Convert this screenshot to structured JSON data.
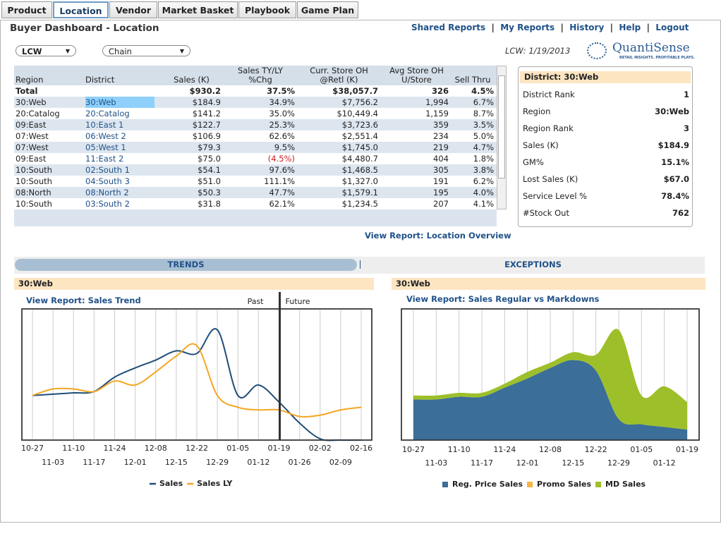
{
  "tabs": [
    "Product",
    "Location",
    "Vendor",
    "Market Basket",
    "Playbook",
    "Game Plan"
  ],
  "header": {
    "title": "Buyer Dashboard - Location",
    "links": [
      "Shared Reports",
      "My Reports",
      "History",
      "Help",
      "Logout"
    ]
  },
  "filters": [
    "LCW",
    "Chain"
  ],
  "date_label": "LCW: 1/19/2013",
  "logo": {
    "name": "QuantiSense",
    "tagline": "RETAIL INSIGHTS. PROFITABLE PLAYS."
  },
  "table": {
    "headers": [
      [
        "Region"
      ],
      [
        "District"
      ],
      [
        "Sales (K)"
      ],
      [
        "Sales TY/LY",
        "%Chg"
      ],
      [
        "Curr. Store OH",
        "@Retl (K)"
      ],
      [
        "Avg Store OH",
        "U/Store"
      ],
      [
        "Sell Thru"
      ]
    ],
    "total": {
      "label": "Total",
      "cells": [
        "$930.2",
        "37.5%",
        "$38,057.7",
        "326",
        "4.5%"
      ]
    },
    "rows": [
      [
        "30:Web",
        "30:Web",
        "$184.9",
        "34.9%",
        "$7,756.2",
        "1,994",
        "6.7%"
      ],
      [
        "20:Catalog",
        "20:Catalog",
        "$141.2",
        "35.0%",
        "$10,449.4",
        "1,159",
        "8.7%"
      ],
      [
        "09:East",
        "10:East 1",
        "$122.7",
        "25.3%",
        "$3,723.6",
        "359",
        "3.5%"
      ],
      [
        "07:West",
        "06:West 2",
        "$106.9",
        "62.6%",
        "$2,551.4",
        "234",
        "5.0%"
      ],
      [
        "07:West",
        "05:West 1",
        "$79.3",
        "9.5%",
        "$1,745.0",
        "219",
        "4.7%"
      ],
      [
        "09:East",
        "11:East 2",
        "$75.0",
        "(4.5%)",
        "$4,480.7",
        "404",
        "1.8%"
      ],
      [
        "10:South",
        "02:South 1",
        "$54.1",
        "97.6%",
        "$1,468.5",
        "305",
        "3.8%"
      ],
      [
        "10:South",
        "04:South 3",
        "$51.0",
        "111.1%",
        "$1,327.0",
        "191",
        "6.2%"
      ],
      [
        "08:North",
        "08:North 2",
        "$50.3",
        "47.7%",
        "$1,579.1",
        "195",
        "4.0%"
      ],
      [
        "10:South",
        "03:South 2",
        "$31.8",
        "62.1%",
        "$1,234.5",
        "207",
        "4.1%"
      ]
    ],
    "link": "View Report: Location Overview"
  },
  "district": {
    "title": "District: 30:Web",
    "rows": [
      [
        "District Rank",
        "1"
      ],
      [
        "Region",
        "30:Web"
      ],
      [
        "Region Rank",
        "3"
      ],
      [
        "Sales (K)",
        "$184.9"
      ],
      [
        "GM%",
        "15.1%"
      ],
      [
        "Lost Sales (K)",
        "$67.0"
      ],
      [
        "Service Level %",
        "78.4%"
      ],
      [
        "#Stock Out",
        "762"
      ]
    ]
  },
  "section_tabs": [
    "TRENDS",
    "EXCEPTIONS"
  ],
  "chart_data": [
    {
      "type": "line",
      "panel_title": "30:Web",
      "link": "View Report: Sales Trend",
      "categories": [
        "10-27",
        "11-03",
        "11-10",
        "11-17",
        "11-24",
        "12-01",
        "12-08",
        "12-15",
        "12-22",
        "12-29",
        "01-05",
        "01-12",
        "01-19",
        "01-26",
        "02-02",
        "02-09",
        "02-16"
      ],
      "series": [
        {
          "name": "Sales",
          "color": "#1f4e79",
          "values": [
            34,
            35,
            36,
            37,
            48,
            55,
            61,
            68,
            66,
            84,
            34,
            42,
            29,
            13,
            1,
            0,
            0
          ]
        },
        {
          "name": "Sales LY",
          "color": "#f5a623",
          "values": [
            34,
            39,
            39,
            37,
            45,
            42,
            52,
            64,
            72,
            34,
            25,
            23,
            23,
            18,
            19,
            23,
            25
          ]
        }
      ],
      "ylim": [
        0,
        100
      ],
      "grid": true,
      "divider": {
        "at": "01-19",
        "labels": [
          "Past",
          "Future"
        ]
      }
    },
    {
      "type": "area",
      "stacked": true,
      "panel_title": "30:Web",
      "link": "View Report: Sales Regular vs Markdowns",
      "categories": [
        "10-27",
        "11-03",
        "11-10",
        "11-17",
        "11-24",
        "12-01",
        "12-08",
        "12-15",
        "12-22",
        "12-29",
        "01-05",
        "01-12",
        "01-19"
      ],
      "series": [
        {
          "name": "Reg. Price Sales",
          "color": "#3b6e98",
          "values": [
            31,
            31,
            33,
            33,
            40,
            47,
            55,
            61,
            53,
            16,
            12,
            10,
            8
          ]
        },
        {
          "name": "Promo Sales",
          "color": "#f7b545",
          "values": [
            0,
            0,
            0,
            0,
            0,
            0,
            0,
            0,
            0,
            0,
            0,
            0,
            0
          ]
        },
        {
          "name": "MD Sales",
          "color": "#9dbf2a",
          "values": [
            3,
            3,
            3,
            3,
            3,
            5,
            4,
            6,
            12,
            68,
            22,
            31,
            21
          ]
        }
      ],
      "ylim": [
        0,
        100
      ],
      "grid": true
    }
  ]
}
